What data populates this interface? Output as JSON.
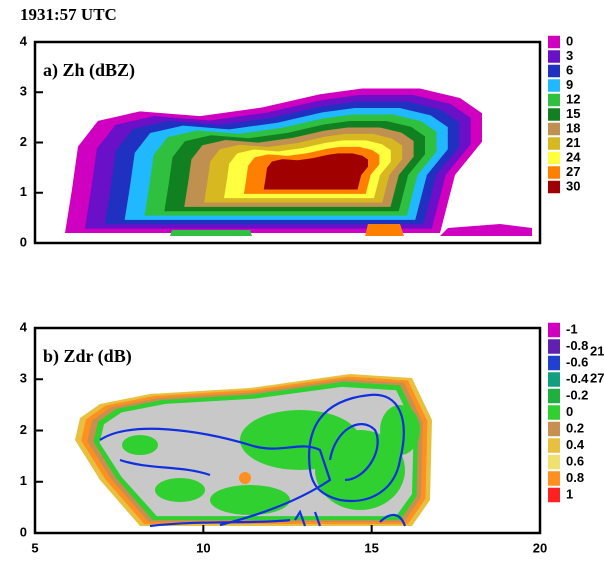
{
  "figure_title": "1931:57 UTC",
  "chart_data": [
    {
      "type": "contour",
      "title": "a) Zh (dBZ)",
      "ylim": [
        0,
        4
      ],
      "yticks": [
        0,
        1,
        2,
        3,
        4
      ],
      "levels": [
        0,
        3,
        6,
        9,
        12,
        15,
        18,
        21,
        24,
        27,
        30
      ],
      "colors": [
        "#d000c0",
        "#6a10c8",
        "#2030c0",
        "#20b8ff",
        "#30c040",
        "#108020",
        "#c09050",
        "#d8b820",
        "#ffff40",
        "#ff8000",
        "#a00000"
      ]
    },
    {
      "type": "contour",
      "title": "b) Zdr (dB)",
      "xlim": [
        5,
        20
      ],
      "xticks": [
        5,
        10,
        15,
        20
      ],
      "ylim": [
        0,
        4
      ],
      "yticks": [
        0,
        1,
        2,
        3,
        4
      ],
      "levels": [
        -1,
        -0.8,
        -0.6,
        -0.4,
        -0.2,
        0,
        0.2,
        0.4,
        0.6,
        0.8,
        1
      ],
      "colors": [
        "#d000c0",
        "#6020b0",
        "#2040d0",
        "#10a080",
        "#20b040",
        "#30d030",
        "#c89050",
        "#e8c040",
        "#f0e070",
        "#ff9020",
        "#ff2020"
      ],
      "contour_labels": [
        21,
        27
      ]
    }
  ]
}
